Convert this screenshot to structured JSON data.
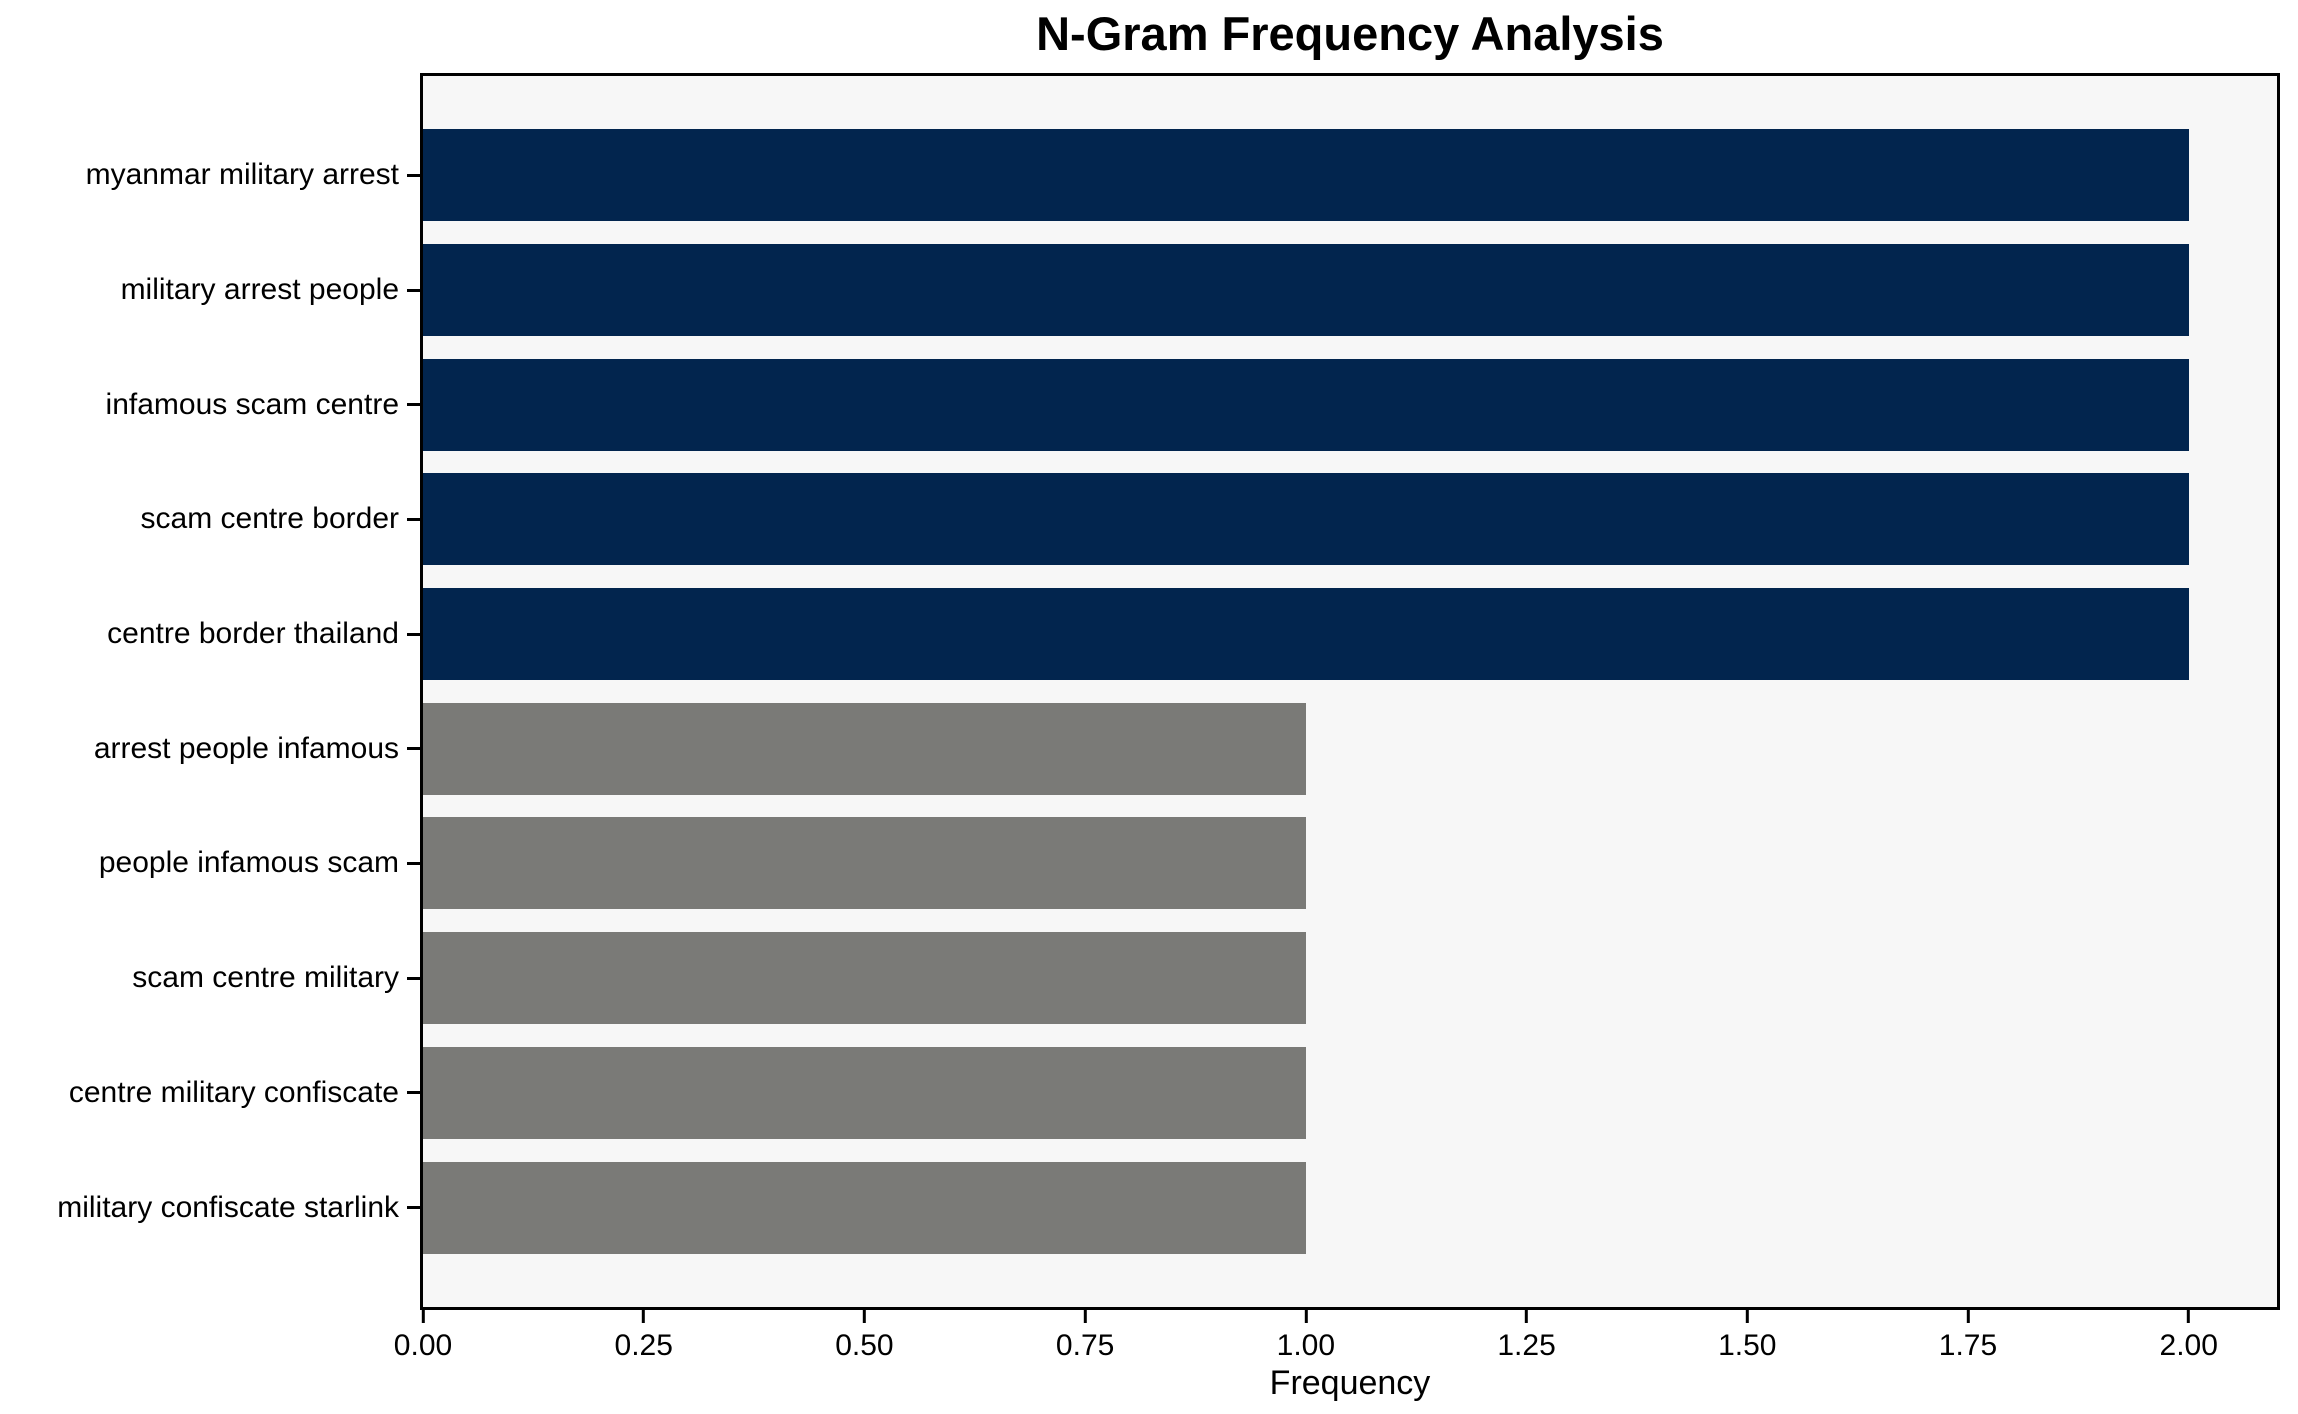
{
  "chart_data": {
    "type": "bar",
    "orientation": "horizontal",
    "title": "N-Gram Frequency Analysis",
    "xlabel": "Frequency",
    "ylabel": "",
    "categories": [
      "myanmar military arrest",
      "military arrest people",
      "infamous scam centre",
      "scam centre border",
      "centre border thailand",
      "arrest people infamous",
      "people infamous scam",
      "scam centre military",
      "centre military confiscate",
      "military confiscate starlink"
    ],
    "values": [
      2,
      2,
      2,
      2,
      2,
      1,
      1,
      1,
      1,
      1
    ],
    "bar_colors": [
      "#02254e",
      "#02254e",
      "#02254e",
      "#02254e",
      "#02254e",
      "#7a7a77",
      "#7a7a77",
      "#7a7a77",
      "#7a7a77",
      "#7a7a77"
    ],
    "xlim": [
      0,
      2.1
    ],
    "xticks": [
      "0.00",
      "0.25",
      "0.50",
      "0.75",
      "1.00",
      "1.25",
      "1.50",
      "1.75",
      "2.00"
    ],
    "xtick_values": [
      0,
      0.25,
      0.5,
      0.75,
      1.0,
      1.25,
      1.5,
      1.75,
      2.0
    ],
    "grid": false,
    "legend": "none",
    "colors": {
      "highlight": "#02254e",
      "muted": "#7a7a77",
      "plot_background": "#f7f7f7",
      "figure_background": "#ffffff",
      "frame": "#000000",
      "text": "#000000"
    }
  }
}
